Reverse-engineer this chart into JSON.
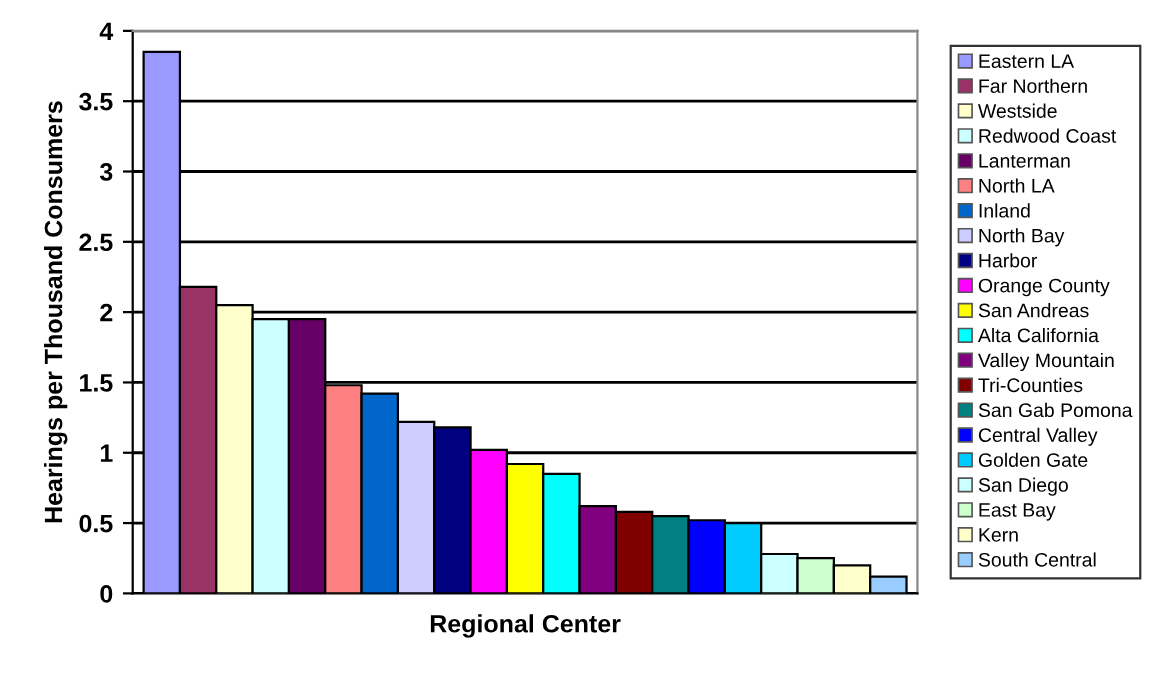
{
  "chart_data": {
    "type": "bar",
    "xlabel": "Regional Center",
    "ylabel": "Hearings per Thousand Consumers",
    "categories": [
      null,
      null,
      null,
      null,
      null,
      null,
      null,
      null,
      null,
      null,
      null,
      null,
      null,
      null,
      null,
      null,
      null,
      null,
      null,
      null,
      null
    ],
    "ylim": [
      0,
      4
    ],
    "yticks": [
      0,
      0.5,
      1,
      1.5,
      2,
      2.5,
      3,
      3.5,
      4
    ],
    "grid": "y",
    "legend": "right",
    "series": [
      {
        "name": "Eastern LA",
        "color": "#9999ff",
        "values": [
          3.85,
          null,
          null,
          null,
          null,
          null,
          null,
          null,
          null,
          null,
          null,
          null,
          null,
          null,
          null,
          null,
          null,
          null,
          null,
          null,
          null
        ]
      },
      {
        "name": "Far Northern",
        "color": "#993366",
        "values": [
          null,
          2.18,
          null,
          null,
          null,
          null,
          null,
          null,
          null,
          null,
          null,
          null,
          null,
          null,
          null,
          null,
          null,
          null,
          null,
          null,
          null
        ]
      },
      {
        "name": "Westside",
        "color": "#ffffcc",
        "values": [
          null,
          null,
          2.05,
          null,
          null,
          null,
          null,
          null,
          null,
          null,
          null,
          null,
          null,
          null,
          null,
          null,
          null,
          null,
          null,
          null,
          null
        ]
      },
      {
        "name": "Redwood Coast",
        "color": "#ccffff",
        "values": [
          null,
          null,
          null,
          1.95,
          null,
          null,
          null,
          null,
          null,
          null,
          null,
          null,
          null,
          null,
          null,
          null,
          null,
          null,
          null,
          null,
          null
        ]
      },
      {
        "name": "Lanterman",
        "color": "#660066",
        "values": [
          null,
          null,
          null,
          null,
          1.95,
          null,
          null,
          null,
          null,
          null,
          null,
          null,
          null,
          null,
          null,
          null,
          null,
          null,
          null,
          null,
          null
        ]
      },
      {
        "name": "North LA",
        "color": "#ff8080",
        "values": [
          null,
          null,
          null,
          null,
          null,
          1.48,
          null,
          null,
          null,
          null,
          null,
          null,
          null,
          null,
          null,
          null,
          null,
          null,
          null,
          null,
          null
        ]
      },
      {
        "name": "Inland",
        "color": "#0066cc",
        "values": [
          null,
          null,
          null,
          null,
          null,
          null,
          1.42,
          null,
          null,
          null,
          null,
          null,
          null,
          null,
          null,
          null,
          null,
          null,
          null,
          null,
          null
        ]
      },
      {
        "name": "North Bay",
        "color": "#ccccff",
        "values": [
          null,
          null,
          null,
          null,
          null,
          null,
          null,
          1.22,
          null,
          null,
          null,
          null,
          null,
          null,
          null,
          null,
          null,
          null,
          null,
          null,
          null
        ]
      },
      {
        "name": "Harbor",
        "color": "#000080",
        "values": [
          null,
          null,
          null,
          null,
          null,
          null,
          null,
          null,
          1.18,
          null,
          null,
          null,
          null,
          null,
          null,
          null,
          null,
          null,
          null,
          null,
          null
        ]
      },
      {
        "name": "Orange County",
        "color": "#ff00ff",
        "values": [
          null,
          null,
          null,
          null,
          null,
          null,
          null,
          null,
          null,
          1.02,
          null,
          null,
          null,
          null,
          null,
          null,
          null,
          null,
          null,
          null,
          null
        ]
      },
      {
        "name": "San Andreas",
        "color": "#ffff00",
        "values": [
          null,
          null,
          null,
          null,
          null,
          null,
          null,
          null,
          null,
          null,
          0.92,
          null,
          null,
          null,
          null,
          null,
          null,
          null,
          null,
          null,
          null
        ]
      },
      {
        "name": "Alta California",
        "color": "#00ffff",
        "values": [
          null,
          null,
          null,
          null,
          null,
          null,
          null,
          null,
          null,
          null,
          null,
          0.85,
          null,
          null,
          null,
          null,
          null,
          null,
          null,
          null,
          null
        ]
      },
      {
        "name": "Valley Mountain",
        "color": "#800080",
        "values": [
          null,
          null,
          null,
          null,
          null,
          null,
          null,
          null,
          null,
          null,
          null,
          null,
          0.62,
          null,
          null,
          null,
          null,
          null,
          null,
          null,
          null
        ]
      },
      {
        "name": "Tri-Counties",
        "color": "#800000",
        "values": [
          null,
          null,
          null,
          null,
          null,
          null,
          null,
          null,
          null,
          null,
          null,
          null,
          null,
          0.58,
          null,
          null,
          null,
          null,
          null,
          null,
          null
        ]
      },
      {
        "name": "San Gab Pomona",
        "color": "#008080",
        "values": [
          null,
          null,
          null,
          null,
          null,
          null,
          null,
          null,
          null,
          null,
          null,
          null,
          null,
          null,
          0.55,
          null,
          null,
          null,
          null,
          null,
          null
        ]
      },
      {
        "name": "Central Valley",
        "color": "#0000ff",
        "values": [
          null,
          null,
          null,
          null,
          null,
          null,
          null,
          null,
          null,
          null,
          null,
          null,
          null,
          null,
          null,
          0.52,
          null,
          null,
          null,
          null,
          null
        ]
      },
      {
        "name": "Golden Gate",
        "color": "#00ccff",
        "values": [
          null,
          null,
          null,
          null,
          null,
          null,
          null,
          null,
          null,
          null,
          null,
          null,
          null,
          null,
          null,
          null,
          0.5,
          null,
          null,
          null,
          null
        ]
      },
      {
        "name": "San Diego",
        "color": "#ccffff",
        "values": [
          null,
          null,
          null,
          null,
          null,
          null,
          null,
          null,
          null,
          null,
          null,
          null,
          null,
          null,
          null,
          null,
          null,
          0.28,
          null,
          null,
          null
        ]
      },
      {
        "name": "East Bay",
        "color": "#ccffcc",
        "values": [
          null,
          null,
          null,
          null,
          null,
          null,
          null,
          null,
          null,
          null,
          null,
          null,
          null,
          null,
          null,
          null,
          null,
          null,
          0.25,
          null,
          null
        ]
      },
      {
        "name": "Kern",
        "color": "#ffffcc",
        "values": [
          null,
          null,
          null,
          null,
          null,
          null,
          null,
          null,
          null,
          null,
          null,
          null,
          null,
          null,
          null,
          null,
          null,
          null,
          null,
          0.2,
          null
        ]
      },
      {
        "name": "South Central",
        "color": "#99ccff",
        "values": [
          null,
          null,
          null,
          null,
          null,
          null,
          null,
          null,
          null,
          null,
          null,
          null,
          null,
          null,
          null,
          null,
          null,
          null,
          null,
          null,
          0.12
        ]
      }
    ]
  }
}
